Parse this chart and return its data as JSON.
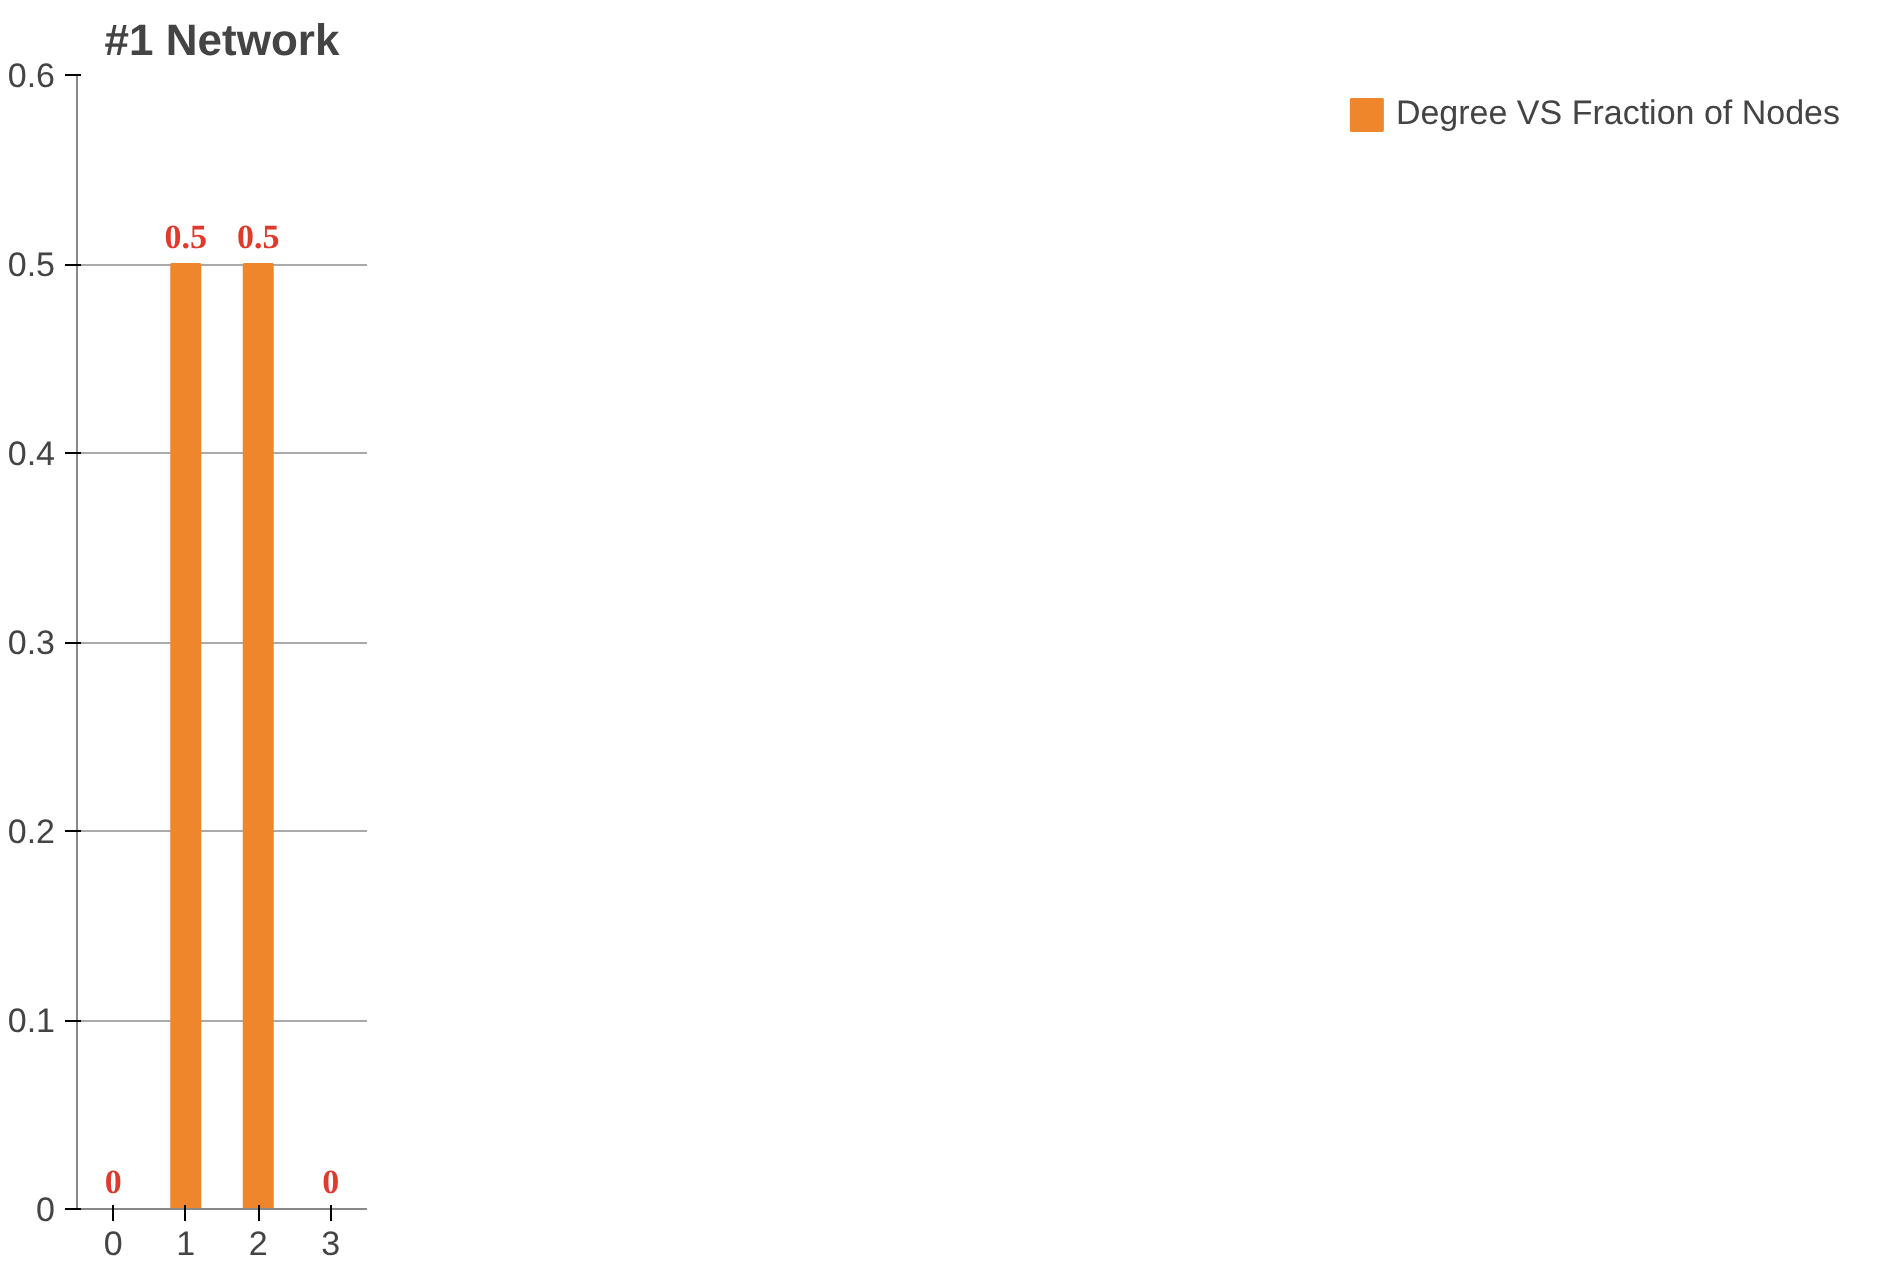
{
  "chart_data": {
    "type": "bar",
    "title": "#1 Network",
    "categories": [
      "0",
      "1",
      "2",
      "3"
    ],
    "series": [
      {
        "name": "Degree VS Fraction of Nodes",
        "color": "#f0862c",
        "values": [
          0,
          0.5,
          0.5,
          0
        ]
      }
    ],
    "ylim": [
      0,
      0.6
    ],
    "yticks": [
      0,
      0.1,
      0.2,
      0.3,
      0.4,
      0.5,
      0.6
    ],
    "grid": "y",
    "legend": "right",
    "data_labels": true
  }
}
